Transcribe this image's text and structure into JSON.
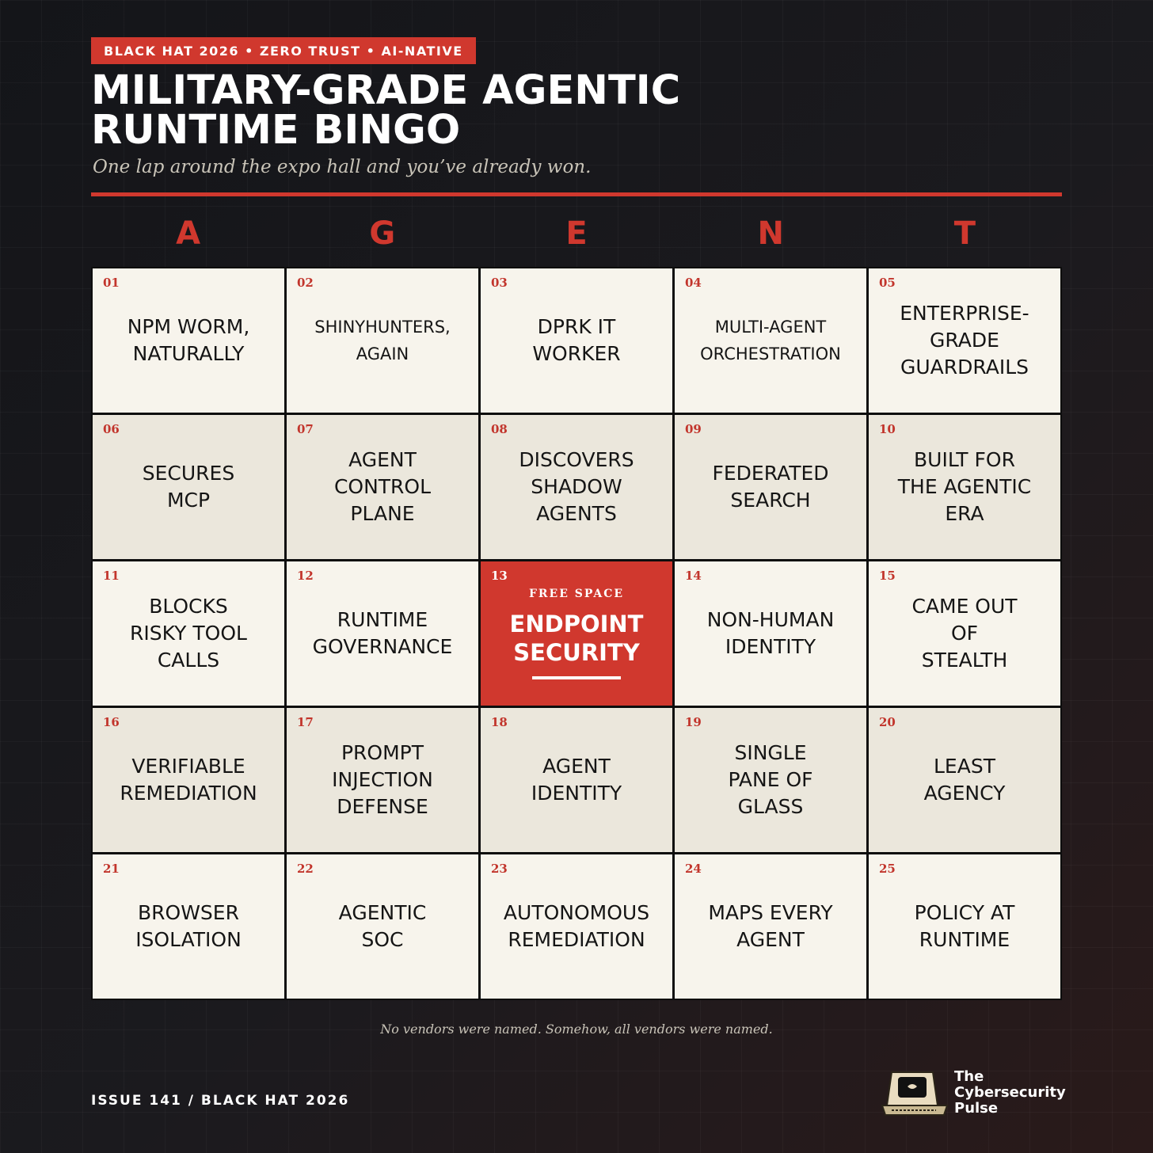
{
  "header": {
    "tag": "BLACK HAT 2026 • ZERO TRUST • AI-NATIVE",
    "title_lines": [
      "MILITARY-GRADE AGENTIC",
      "RUNTIME BINGO"
    ],
    "subtitle": "One lap around the expo hall and you’ve already won."
  },
  "columns": [
    "A",
    "G",
    "E",
    "N",
    "T"
  ],
  "cells": [
    {
      "number": "01",
      "lines": [
        "NPM WORM,",
        "NATURALLY"
      ]
    },
    {
      "number": "02",
      "lines": [
        "SHINYHUNTERS,",
        "AGAIN"
      ]
    },
    {
      "number": "03",
      "lines": [
        "DPRK IT",
        "WORKER"
      ]
    },
    {
      "number": "04",
      "lines": [
        "MULTI-AGENT",
        "ORCHESTRATION"
      ]
    },
    {
      "number": "05",
      "lines": [
        "ENTERPRISE-",
        "GRADE",
        "GUARDRAILS"
      ]
    },
    {
      "number": "06",
      "lines": [
        "SECURES",
        "MCP"
      ]
    },
    {
      "number": "07",
      "lines": [
        "AGENT",
        "CONTROL",
        "PLANE"
      ]
    },
    {
      "number": "08",
      "lines": [
        "DISCOVERS",
        "SHADOW",
        "AGENTS"
      ]
    },
    {
      "number": "09",
      "lines": [
        "FEDERATED",
        "SEARCH"
      ]
    },
    {
      "number": "10",
      "lines": [
        "BUILT FOR",
        "THE AGENTIC",
        "ERA"
      ]
    },
    {
      "number": "11",
      "lines": [
        "BLOCKS",
        "RISKY TOOL",
        "CALLS"
      ]
    },
    {
      "number": "12",
      "lines": [
        "RUNTIME",
        "GOVERNANCE"
      ]
    },
    {
      "number": "13",
      "label": "FREE SPACE",
      "lines": [
        "ENDPOINT",
        "SECURITY"
      ]
    },
    {
      "number": "14",
      "lines": [
        "NON-HUMAN",
        "IDENTITY"
      ]
    },
    {
      "number": "15",
      "lines": [
        "CAME OUT",
        "OF",
        "STEALTH"
      ]
    },
    {
      "number": "16",
      "lines": [
        "VERIFIABLE",
        "REMEDIATION"
      ]
    },
    {
      "number": "17",
      "lines": [
        "PROMPT",
        "INJECTION",
        "DEFENSE"
      ]
    },
    {
      "number": "18",
      "lines": [
        "AGENT",
        "IDENTITY"
      ]
    },
    {
      "number": "19",
      "lines": [
        "SINGLE",
        "PANE OF",
        "GLASS"
      ]
    },
    {
      "number": "20",
      "lines": [
        "LEAST",
        "AGENCY"
      ]
    },
    {
      "number": "21",
      "lines": [
        "BROWSER",
        "ISOLATION"
      ]
    },
    {
      "number": "22",
      "lines": [
        "AGENTIC",
        "SOC"
      ]
    },
    {
      "number": "23",
      "lines": [
        "AUTONOMOUS",
        "REMEDIATION"
      ]
    },
    {
      "number": "24",
      "lines": [
        "MAPS EVERY",
        "AGENT"
      ]
    },
    {
      "number": "25",
      "lines": [
        "POLICY AT",
        "RUNTIME"
      ]
    }
  ],
  "footer": {
    "note": "No vendors were named. Somehow, all vendors were named.",
    "issue": "ISSUE 141 / BLACK HAT 2026",
    "brand_lines": [
      "The",
      "Cybersecurity",
      "Pulse"
    ]
  }
}
